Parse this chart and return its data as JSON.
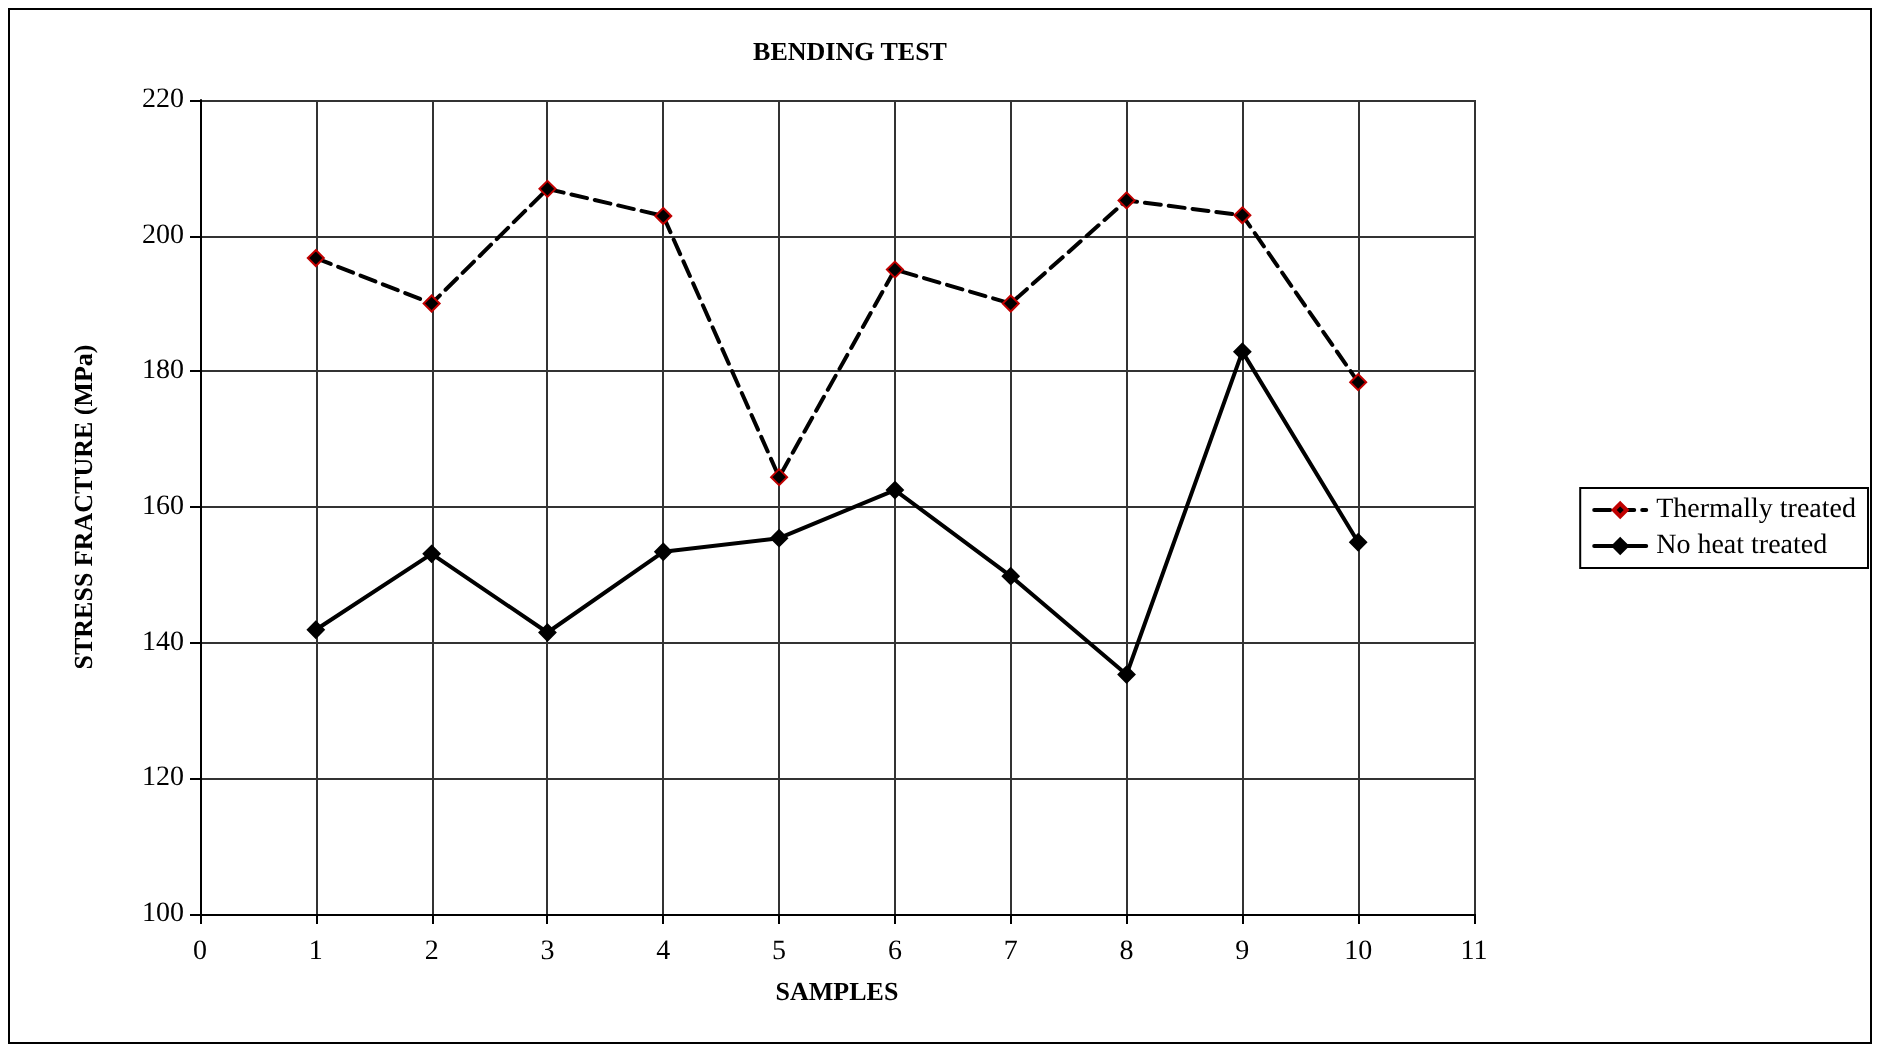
{
  "chart_data": {
    "type": "line",
    "title": "BENDING TEST",
    "xlabel": "SAMPLES",
    "ylabel": "STRESS FRACTURE (MPa)",
    "x": [
      1,
      2,
      3,
      4,
      5,
      6,
      7,
      8,
      9,
      10
    ],
    "series": [
      {
        "name": "Thermally treated",
        "color": "#000000",
        "line_style": "dashed",
        "values": [
          196.7,
          190,
          206.9,
          202.9,
          164.4,
          195,
          190,
          205.2,
          203,
          178.4
        ]
      },
      {
        "name": "No heat treated",
        "color": "#000000",
        "line_style": "solid",
        "values": [
          141.9,
          153.1,
          141.5,
          153.4,
          155.4,
          162.5,
          149.8,
          135.3,
          182.9,
          154.8
        ]
      }
    ],
    "xlim": [
      0,
      11
    ],
    "xticks": [
      0,
      1,
      2,
      3,
      4,
      5,
      6,
      7,
      8,
      9,
      10,
      11
    ],
    "ylim": [
      100,
      220
    ],
    "yticks": [
      100,
      120,
      140,
      160,
      180,
      200,
      220
    ],
    "grid": true,
    "legend": "right",
    "marker": "diamond"
  }
}
